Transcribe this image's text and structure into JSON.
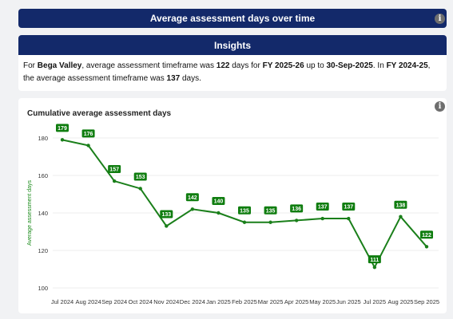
{
  "header": {
    "title": "Average assessment days over time",
    "info_icon": "i"
  },
  "insights": {
    "title": "Insights",
    "seg1": "For ",
    "region": "Bega Valley",
    "seg2": ", average assessment timeframe was ",
    "current_days": "122",
    "seg3": " days for ",
    "fy_current": "FY 2025-26",
    "seg4": " up to ",
    "date": "30-Sep-2025",
    "seg5": ". In ",
    "fy_previous": "FY 2024-25",
    "seg6": ", the average assessment timeframe was ",
    "previous_days": "137",
    "seg7": " days."
  },
  "chart_info_icon": "i",
  "colors": {
    "header": "#13296a",
    "series": "#1a7f1a",
    "label_bg": "#0f7d0f"
  },
  "chart_data": {
    "type": "line",
    "title": "Cumulative average assessment days",
    "xlabel": "",
    "ylabel": "Average assessment days",
    "categories": [
      "Jul 2024",
      "Aug 2024",
      "Sep 2024",
      "Oct 2024",
      "Nov 2024",
      "Dec 2024",
      "Jan 2025",
      "Feb 2025",
      "Mar 2025",
      "Apr 2025",
      "May 2025",
      "Jun 2025",
      "Jul 2025",
      "Aug 2025",
      "Sep 2025"
    ],
    "values": [
      179,
      176,
      157,
      153,
      133,
      142,
      140,
      135,
      135,
      136,
      137,
      137,
      111,
      138,
      122
    ],
    "ylim": [
      100,
      185
    ],
    "yticks": [
      100,
      120,
      140,
      160,
      180
    ],
    "grid": true,
    "legend": "none"
  }
}
